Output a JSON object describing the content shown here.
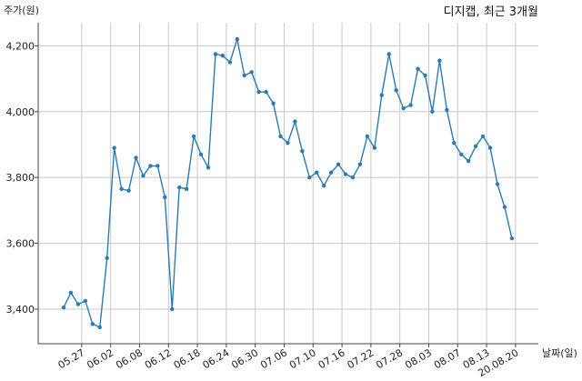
{
  "chart_data": {
    "type": "line",
    "title": "디지캡, 최근 3개월",
    "xlabel": "날짜(일)",
    "ylabel": "주가(원)",
    "ylim": [
      3295,
      4270
    ],
    "yticks": [
      3400,
      3600,
      3800,
      4000,
      4200
    ],
    "ytick_labels": [
      "3,400",
      "3,600",
      "3,800",
      "4,000",
      "4,200"
    ],
    "x_ticks": [
      {
        "label": "05.27",
        "pos": 2.5
      },
      {
        "label": "06.02",
        "pos": 6.5
      },
      {
        "label": "06.08",
        "pos": 10.5
      },
      {
        "label": "06.12",
        "pos": 14.5
      },
      {
        "label": "06.18",
        "pos": 18.5
      },
      {
        "label": "06.24",
        "pos": 22.5
      },
      {
        "label": "06.30",
        "pos": 26.5
      },
      {
        "label": "07.06",
        "pos": 30.5
      },
      {
        "label": "07.10",
        "pos": 34.5
      },
      {
        "label": "07.16",
        "pos": 38.5
      },
      {
        "label": "07.22",
        "pos": 42.5
      },
      {
        "label": "07.28",
        "pos": 46.5
      },
      {
        "label": "08.03",
        "pos": 50.5
      },
      {
        "label": "08.07",
        "pos": 54.5
      },
      {
        "label": "08.13",
        "pos": 58.5
      },
      {
        "label": "20.08.20",
        "pos": 62.5
      }
    ],
    "grid": true,
    "color": "#2b7bb0",
    "values": [
      3405,
      3450,
      3415,
      3425,
      3355,
      3345,
      3555,
      3890,
      3765,
      3760,
      3860,
      3805,
      3835,
      3835,
      3740,
      3400,
      3770,
      3765,
      3925,
      3870,
      3830,
      4175,
      4170,
      4150,
      4220,
      4110,
      4120,
      4060,
      4060,
      4025,
      3925,
      3905,
      3970,
      3880,
      3800,
      3815,
      3775,
      3815,
      3840,
      3810,
      3800,
      3840,
      3925,
      3890,
      4050,
      4175,
      4065,
      4010,
      4020,
      4130,
      4110,
      4000,
      4155,
      4005,
      3905,
      3870,
      3850,
      3895,
      3925,
      3890,
      3780,
      3710,
      3615
    ]
  }
}
